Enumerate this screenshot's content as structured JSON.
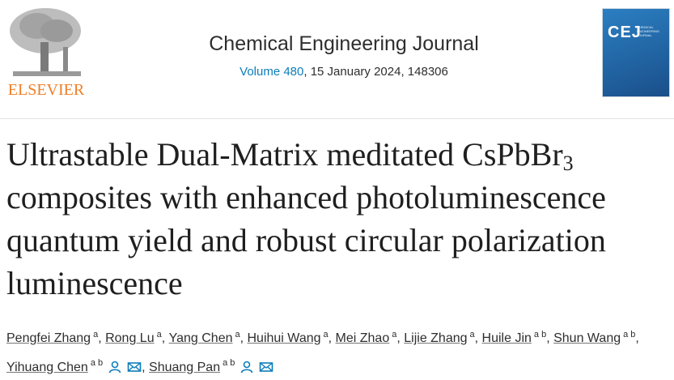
{
  "header": {
    "publisher": "ELSEVIER",
    "journal": "Chemical Engineering Journal",
    "volume_label": "Volume 480",
    "issue_info": ", 15 January 2024, 148306",
    "cover": {
      "title": "CEJ",
      "subtitle": "CHEMICAL ENGINEERING JOURNAL"
    }
  },
  "article": {
    "title_main": "Ultrastable Dual-Matrix meditated CsPbBr",
    "title_subscript": "3",
    "title_rest": "composites with enhanced photoluminescence quantum yield and robust circular polarization luminescence",
    "author_separator": ", ",
    "authors": [
      {
        "name": "Pengfei Zhang",
        "affiliations": "a"
      },
      {
        "name": "Rong Lu",
        "affiliations": "a"
      },
      {
        "name": "Yang Chen",
        "affiliations": "a"
      },
      {
        "name": "Huihui Wang",
        "affiliations": "a"
      },
      {
        "name": "Mei Zhao",
        "affiliations": "a"
      },
      {
        "name": "Lijie Zhang",
        "affiliations": "a"
      },
      {
        "name": "Huile Jin",
        "affiliations": "a b"
      },
      {
        "name": "Shun Wang",
        "affiliations": "a b"
      },
      {
        "name": "Yihuang Chen",
        "affiliations": "a b",
        "corresponding": true
      },
      {
        "name": "Shuang Pan",
        "affiliations": "a b",
        "corresponding": true
      }
    ]
  }
}
